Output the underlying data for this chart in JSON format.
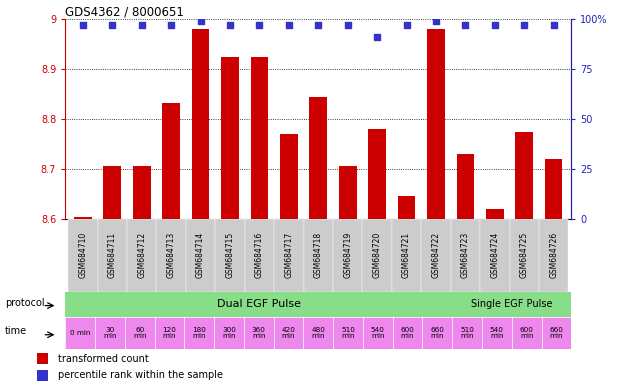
{
  "title": "GDS4362 / 8000651",
  "gsm_labels": [
    "GSM684710",
    "GSM684711",
    "GSM684712",
    "GSM684713",
    "GSM684714",
    "GSM684715",
    "GSM684716",
    "GSM684717",
    "GSM684718",
    "GSM684719",
    "GSM684720",
    "GSM684721",
    "GSM684722",
    "GSM684723",
    "GSM684724",
    "GSM684725",
    "GSM684726"
  ],
  "bar_values": [
    8.604,
    8.705,
    8.706,
    8.833,
    8.98,
    8.925,
    8.925,
    8.77,
    8.845,
    8.705,
    8.78,
    8.645,
    8.98,
    8.73,
    8.62,
    8.775,
    8.72
  ],
  "percentile_values": [
    97,
    97,
    97,
    97,
    99,
    97,
    97,
    97,
    97,
    97,
    91,
    97,
    99,
    97,
    97,
    97,
    97
  ],
  "y_min": 8.6,
  "y_max": 9.0,
  "y_ticks": [
    8.6,
    8.7,
    8.8,
    8.9,
    9.0
  ],
  "y_tick_labels": [
    "8.6",
    "8.7",
    "8.8",
    "8.9",
    "9"
  ],
  "y2_ticks": [
    0,
    25,
    50,
    75,
    100
  ],
  "y2_tick_labels": [
    "0",
    "25",
    "50",
    "75",
    "100%"
  ],
  "bar_color": "#cc0000",
  "dot_color": "#3333cc",
  "dot_size": 20,
  "bar_width": 0.6,
  "protocol_label": "protocol",
  "time_label": "time",
  "protocol_dual": "Dual EGF Pulse",
  "protocol_single": "Single EGF Pulse",
  "dual_color": "#88dd88",
  "single_color": "#88dd88",
  "time_color": "#ee88ee",
  "time_bg_alt": "#dd66dd",
  "time_labels_line1": [
    "0 min",
    "30",
    "60",
    "120",
    "180",
    "300",
    "360",
    "420",
    "480",
    "510",
    "540",
    "600",
    "660",
    "510",
    "540",
    "600",
    "660"
  ],
  "time_labels_line2": [
    "",
    "min",
    "min",
    "min",
    "min",
    "min",
    "min",
    "min",
    "min",
    "min",
    "min",
    "min",
    "min",
    "min",
    "min",
    "min",
    "min"
  ],
  "legend_bar_label": "transformed count",
  "legend_dot_label": "percentile rank within the sample",
  "left_axis_color": "#cc0000",
  "right_axis_color": "#2222bb",
  "bg_color": "#ffffff",
  "header_bg": "#cccccc",
  "n_dual": 13,
  "n_single": 4
}
